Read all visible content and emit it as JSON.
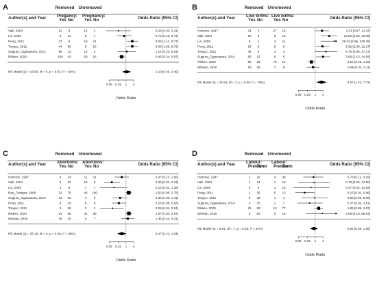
{
  "chart_data": [
    {
      "type": "forest",
      "panel_label": "A",
      "header_author": "Author(s) and Year",
      "group1_name": "Removed",
      "group1_outcome": "Pregancy:",
      "group2_name": "Unremoved",
      "group2_outcome": "Pregnancy:",
      "col_yes": "Yes",
      "col_no": "No",
      "effect_header": "Odds Ratio [95% CI]",
      "studies": [
        {
          "label": "Valli, 2004",
          "g1_yes": "12",
          "g1_no": "8",
          "g2_yes": "14",
          "g2_no": "1",
          "or": 0.26,
          "lo": 0.03,
          "hi": 2.41,
          "ci": "0.26 [0.03, 2.41]"
        },
        {
          "label": "Lin, 2009",
          "g1_yes": "9",
          "g1_no": "11",
          "g2_yes": "8",
          "g2_no": "7",
          "or": 0.72,
          "lo": 0.19,
          "hi": 2.74,
          "ci": "0.72 [0.19, 2.74]"
        },
        {
          "label": "Peng, 2011",
          "g1_yes": "37",
          "g1_no": "9",
          "g2_yes": "19",
          "g2_no": "14",
          "or": 3.03,
          "lo": 1.17,
          "hi": 8.77,
          "ci": "3.03 [1.17, 8.77]"
        },
        {
          "label": "Tonguc, 2011",
          "g1_yes": "44",
          "g1_no": "56",
          "g2_yes": "5",
          "g2_no": "20",
          "or": 3.03,
          "lo": 1.06,
          "hi": 8.72,
          "ci": "3.03 [1.06, 8.72]"
        },
        {
          "label": "Sugiura_Ogasawara, 2014",
          "g1_yes": "96",
          "g1_no": "13",
          "g2_yes": "13",
          "g2_no": "2",
          "or": 1.14,
          "lo": 0.23,
          "hi": 5.61,
          "ci": "1.14 [0.23, 5.61]"
        },
        {
          "label": "Rikken, 2020",
          "g1_yes": "109",
          "g1_no": "42",
          "g2_yes": "60",
          "g2_no": "16",
          "or": 0.46,
          "lo": 0.24,
          "hi": 0.87,
          "ci": "0.46 [0.24, 0.87]"
        }
      ],
      "summary": {
        "label": "RE Model (Q = 16.60, df = 5, p = 0.01; I² = 66%)",
        "or": 1.1,
        "lo": 0.49,
        "hi": 2.49,
        "ci": "1.10 [0.49, 2.49]"
      },
      "ticks": [
        "0.05",
        "0.25",
        "1",
        "4"
      ],
      "xlabel": "Odds Ratio",
      "scale": "log"
    },
    {
      "type": "forest",
      "panel_label": "B",
      "header_author": "Author(s) and Year",
      "group1_name": "Removed",
      "group1_outcome": "Live births:",
      "group2_name": "Unremoved",
      "group2_outcome": "Live births:",
      "col_yes": "Yes",
      "col_no": "No",
      "effect_header": "Odds Ratio [95% CI]",
      "studies": [
        {
          "label": "Heinone, 1997",
          "g1_yes": "24",
          "g1_no": "4",
          "g2_yes": "27",
          "g2_no": "15",
          "or": 3.33,
          "lo": 0.97,
          "hi": 11.43,
          "ci": "3.33 [0.97, 11.43]"
        },
        {
          "label": "Valli, 2004",
          "g1_yes": "20",
          "g1_no": "5",
          "g2_yes": "5",
          "g2_no": "15",
          "or": 12.0,
          "lo": 2.93,
          "hi": 49.09,
          "ci": "12.00 [2.93, 49.09]"
        },
        {
          "label": "Lin, 2009",
          "g1_yes": "8",
          "g1_no": "1",
          "g2_yes": "3",
          "g2_no": "11",
          "or": 29.33,
          "lo": 2.56,
          "hi": 336.39,
          "ci": "29.33 [2.56, 336.39]"
        },
        {
          "label": "Peng, 2011",
          "g1_yes": "29",
          "g1_no": "8",
          "g2_yes": "9",
          "g2_no": "9",
          "or": 3.62,
          "lo": 1.08,
          "hi": 12.17,
          "ci": "3.62 [1.08, 12.17]"
        },
        {
          "label": "Tonguc, 2011",
          "g1_yes": "36",
          "g1_no": "8",
          "g2_yes": "2",
          "g2_no": "3",
          "or": 6.75,
          "lo": 0.96,
          "hi": 47.27,
          "ci": "6.75 [0.96, 47.27]"
        },
        {
          "label": "Sugiura_Ogasawara, 2014",
          "g1_yes": "83",
          "g1_no": "13",
          "g2_yes": "8",
          "g2_no": "5",
          "or": 3.99,
          "lo": 1.13,
          "hi": 14.08,
          "ci": "3.99 [1.13, 14.08]"
        },
        {
          "label": "Rikken, 2020",
          "g1_yes": "80",
          "g1_no": "29",
          "g2_yes": "78",
          "g2_no": "14",
          "or": 0.51,
          "lo": 0.25,
          "hi": 1.03,
          "ci": "0.51 [0.25, 1.03]"
        },
        {
          "label": "Whelan, 2020",
          "g1_yes": "19",
          "g1_no": "36",
          "g2_yes": "7",
          "g2_no": "9",
          "or": 0.68,
          "lo": 0.22,
          "hi": 2.11,
          "ci": "0.68 [0.22, 2.11]"
        }
      ],
      "summary": {
        "label": "RE Model (Q = 32.54, df = 7, p = 0.00; I² = 76%)",
        "or": 3.07,
        "lo": 1.22,
        "hi": 7.73,
        "ci": "3.07 [1.22, 7.73]"
      },
      "ticks": [
        "0.05",
        "0.25",
        "1",
        "4"
      ],
      "xlabel": "Odds Ratio",
      "scale": "log"
    },
    {
      "type": "forest",
      "panel_label": "C",
      "header_author": "Author(s) and Year",
      "group1_name": "Removed",
      "group1_outcome": "Abortions:",
      "group2_name": "Unremoved",
      "group2_outcome": "Abortions:",
      "col_yes": "Yes",
      "col_no": "No",
      "effect_header": "Odds Ratio [95% CI]",
      "studies": [
        {
          "label": "Heinone, 1997",
          "g1_yes": "4",
          "g1_no": "24",
          "g2_yes": "11",
          "g2_no": "31",
          "or": 0.47,
          "lo": 0.13,
          "hi": 1.66,
          "ci": "0.47 [0.13, 1.66]"
        },
        {
          "label": "Valli, 2004",
          "g1_yes": "5",
          "g1_no": "20",
          "g2_yes": "15",
          "g2_no": "5",
          "or": 0.08,
          "lo": 0.02,
          "hi": 0.34,
          "ci": "0.08 [0.02, 0.34]"
        },
        {
          "label": "Lin, 2009",
          "g1_yes": "1",
          "g1_no": "8",
          "g2_yes": "7",
          "g2_no": "7",
          "or": 0.12,
          "lo": 0.01,
          "hi": 1.28,
          "ci": "0.12 [0.01, 1.28]"
        },
        {
          "label": "Ban_Frangez, 2009",
          "g1_yes": "31",
          "g1_no": "75",
          "g2_yes": "43",
          "g2_no": "169",
          "or": 1.62,
          "lo": 0.95,
          "hi": 2.78,
          "ci": "1.62 [0.95, 2.78]"
        },
        {
          "label": "Sugiura_Ogasawara, 2010",
          "g1_yes": "13",
          "g1_no": "83",
          "g2_yes": "4",
          "g2_no": "9",
          "or": 0.35,
          "lo": 0.09,
          "hi": 1.31,
          "ci": "0.35 [0.09, 1.31]"
        },
        {
          "label": "Peng, 2011",
          "g1_yes": "8",
          "g1_no": "29",
          "g2_yes": "9",
          "g2_no": "9",
          "or": 0.28,
          "lo": 0.08,
          "hi": 0.93,
          "ci": "0.28 [0.08, 0.93]"
        },
        {
          "label": "Tonguc, 2011",
          "g1_yes": "5",
          "g1_no": "36",
          "g2_yes": "3",
          "g2_no": "2",
          "or": 0.09,
          "lo": 0.01,
          "hi": 0.64,
          "ci": "0.09 [0.01, 0.64]"
        },
        {
          "label": "Rikken, 2020",
          "g1_yes": "51",
          "g1_no": "58",
          "g2_yes": "31",
          "g2_no": "59",
          "or": 1.67,
          "lo": 0.94,
          "hi": 2.97,
          "ci": "1.67 [0.94, 2.97]"
        },
        {
          "label": "Whelan, 2020",
          "g1_yes": "36",
          "g1_no": "20",
          "g2_yes": "9",
          "g2_no": "7",
          "or": 1.36,
          "lo": 0.44,
          "hi": 4.21,
          "ci": "1.36 [0.44, 4.21]"
        }
      ],
      "summary": {
        "label": "RE Model (Q = 35.19, df = 8, p = 0.00; I² = 80%)",
        "or": 0.47,
        "lo": 0.21,
        "hi": 1.04,
        "ci": "0.47 [0.21, 1.04]"
      },
      "ticks": [
        "0.05",
        "0.25",
        "1",
        "4"
      ],
      "xlabel": "Odds Ratio",
      "scale": "log"
    },
    {
      "type": "forest",
      "panel_label": "D",
      "header_author": "Author(s) and Year",
      "group1_name": "Removed",
      "group1_outcome": "Labour:",
      "group2_name": "Unremoved",
      "group2_outcome": "Labour:",
      "col_yes": "Preterm",
      "col_no": "Term",
      "effect_header": "Odds Ratio [95% CI]",
      "studies": [
        {
          "label": "Heinone, 1997",
          "g1_yes": "2",
          "g1_no": "26",
          "g2_yes": "4",
          "g2_no": "38",
          "or": 0.73,
          "lo": 0.12,
          "hi": 4.29,
          "ci": "0.73 [0.12, 4.29]"
        },
        {
          "label": "Valli, 2004",
          "g1_yes": "1",
          "g1_no": "24",
          "g2_yes": "1",
          "g2_no": "19",
          "or": 0.79,
          "lo": 0.05,
          "hi": 13.5,
          "ci": "0.79 [0.05, 13.50]"
        },
        {
          "label": "Lin, 2009",
          "g1_yes": "0",
          "g1_no": "9",
          "g2_yes": "1",
          "g2_no": "13",
          "or": 0.47,
          "lo": 0.02,
          "hi": 12.93,
          "ci": "0.47 [0.02, 12.93]"
        },
        {
          "label": "Peng, 2011",
          "g1_yes": "2",
          "g1_no": "35",
          "g2_yes": "5",
          "g2_no": "13",
          "or": 0.15,
          "lo": 0.03,
          "hi": 0.86,
          "ci": "0.15 [0.03, 0.86]"
        },
        {
          "label": "Tonguc, 2011",
          "g1_yes": "8",
          "g1_no": "36",
          "g2_yes": "1",
          "g2_no": "4",
          "or": 0.89,
          "lo": 0.09,
          "hi": 9.06,
          "ci": "0.89 [0.09, 9.06]"
        },
        {
          "label": "Sugiura_Ogasawara, 2014",
          "g1_yes": "4",
          "g1_no": "75",
          "g2_yes": "1",
          "g2_no": "7",
          "or": 0.37,
          "lo": 0.04,
          "hi": 3.81,
          "ci": "0.37 [0.04, 3.81]"
        },
        {
          "label": "Rikken, 2020",
          "g1_yes": "26",
          "g1_no": "83",
          "g2_yes": "13",
          "g2_no": "77",
          "or": 1.86,
          "lo": 0.89,
          "hi": 3.87,
          "ci": "1.86 [0.89, 3.87]"
        },
        {
          "label": "Whelan, 2020",
          "g1_yes": "5",
          "g1_no": "50",
          "g2_yes": "0",
          "g2_no": "16",
          "or": 3.59,
          "lo": 0.19,
          "hi": 68.53,
          "ci": "3.59 [0.19, 68.53]"
        }
      ],
      "summary": {
        "label": "RE Model (Q = 8.91, df = 7, p = 0.26; I² = 32%)",
        "or": 0.81,
        "lo": 0.39,
        "hi": 1.66,
        "ci": "0.81 [0.39, 1.66]"
      },
      "ticks": [
        "0.05",
        "0.25",
        "1",
        "4"
      ],
      "xlabel": "Odds Ratio",
      "scale": "log"
    }
  ]
}
